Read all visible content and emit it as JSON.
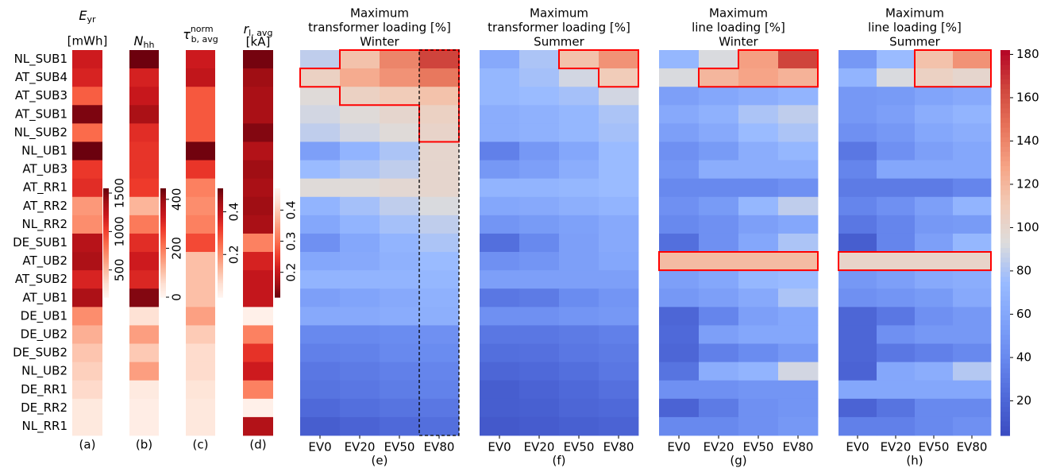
{
  "chart_data": [
    {
      "type": "heatmap",
      "label": "(a)",
      "title": {
        "symbol": "E",
        "sub": "yr",
        "unit": "[mWh]"
      },
      "cmap": "Reds",
      "y_categories": [
        "NL_SUB1",
        "AT_SUB4",
        "AT_SUB3",
        "AT_SUB1",
        "NL_SUB2",
        "NL_UB1",
        "AT_UB3",
        "AT_RR1",
        "AT_RR2",
        "NL_RR2",
        "DE_SUB1",
        "AT_UB2",
        "AT_SUB2",
        "AT_UB1",
        "DE_UB1",
        "DE_UB2",
        "DE_SUB2",
        "NL_UB2",
        "DE_RR1",
        "DE_RR2",
        "NL_RR1"
      ],
      "values": [
        1200,
        1150,
        900,
        1500,
        850,
        1550,
        1050,
        1100,
        650,
        700,
        1300,
        1350,
        1150,
        1350,
        700,
        550,
        450,
        400,
        350,
        250,
        250
      ],
      "clim": [
        146,
        1562
      ],
      "cticks": [
        500,
        1000,
        1500
      ]
    },
    {
      "type": "heatmap",
      "label": "(b)",
      "title": {
        "symbol": "N",
        "sub": "hh"
      },
      "cmap": "Reds",
      "values": [
        440,
        320,
        340,
        380,
        300,
        290,
        290,
        280,
        120,
        200,
        300,
        330,
        310,
        420,
        50,
        150,
        90,
        150,
        30,
        20,
        20
      ],
      "clim": [
        0,
        445
      ],
      "cticks": [
        0,
        200,
        400
      ]
    },
    {
      "type": "heatmap",
      "label": "(c)",
      "title": {
        "symbol": "τ",
        "sup": "norm",
        "sub": "b, avg"
      },
      "cmap": "Reds",
      "values": [
        0.38,
        0.4,
        0.28,
        0.28,
        0.28,
        0.5,
        0.33,
        0.22,
        0.2,
        0.22,
        0.3,
        0.12,
        0.12,
        0.12,
        0.17,
        0.1,
        0.07,
        0.07,
        0.05,
        0.04,
        0.04
      ],
      "clim": [
        0,
        0.51
      ],
      "cticks": [
        0.2,
        0.4
      ]
    },
    {
      "type": "heatmap",
      "label": "(d)",
      "title": {
        "symbol": "r",
        "sub": "l, avg",
        "unit": "[kA]"
      },
      "cmap": "Reds_r",
      "values": [
        0.13,
        0.16,
        0.17,
        0.17,
        0.14,
        0.18,
        0.16,
        0.17,
        0.16,
        0.17,
        0.32,
        0.22,
        0.2,
        0.2,
        0.46,
        0.32,
        0.24,
        0.21,
        0.32,
        0.46,
        0.18
      ],
      "clim": [
        0.12,
        0.47
      ],
      "cticks": [
        0.2,
        0.3,
        0.4
      ]
    },
    {
      "type": "heatmap",
      "label": "(e)",
      "title": [
        "Maximum",
        "transformer loading [%]",
        "Winter"
      ],
      "cmap": "coolwarm",
      "x_categories": [
        "EV0",
        "EV20",
        "EV50",
        "EV80"
      ],
      "values": [
        [
          85,
          115,
          140,
          165
        ],
        [
          105,
          125,
          135,
          145
        ],
        [
          95,
          105,
          110,
          115
        ],
        [
          90,
          95,
          100,
          105
        ],
        [
          85,
          90,
          95,
          102
        ],
        [
          55,
          70,
          80,
          100
        ],
        [
          75,
          80,
          85,
          100
        ],
        [
          95,
          95,
          98,
          100
        ],
        [
          70,
          78,
          85,
          92
        ],
        [
          60,
          70,
          78,
          85
        ],
        [
          45,
          60,
          70,
          80
        ],
        [
          60,
          62,
          68,
          75
        ],
        [
          70,
          70,
          70,
          72
        ],
        [
          55,
          58,
          62,
          68
        ],
        [
          62,
          62,
          64,
          66
        ],
        [
          40,
          40,
          42,
          45
        ],
        [
          35,
          36,
          40,
          42
        ],
        [
          30,
          32,
          35,
          38
        ],
        [
          28,
          30,
          33,
          36
        ],
        [
          22,
          25,
          28,
          30
        ],
        [
          15,
          18,
          22,
          25
        ]
      ]
    },
    {
      "type": "heatmap",
      "label": "(f)",
      "title": [
        "Maximum",
        "transformer loading [%]",
        "Summer"
      ],
      "cmap": "coolwarm",
      "x_categories": [
        "EV0",
        "EV20",
        "EV50",
        "EV80"
      ],
      "values": [
        [
          62,
          80,
          115,
          135
        ],
        [
          72,
          78,
          90,
          110
        ],
        [
          72,
          75,
          78,
          90
        ],
        [
          65,
          68,
          72,
          80
        ],
        [
          65,
          68,
          72,
          78
        ],
        [
          35,
          50,
          60,
          75
        ],
        [
          50,
          55,
          65,
          75
        ],
        [
          70,
          70,
          72,
          75
        ],
        [
          60,
          62,
          66,
          70
        ],
        [
          48,
          52,
          56,
          62
        ],
        [
          25,
          40,
          55,
          62
        ],
        [
          45,
          48,
          55,
          60
        ],
        [
          55,
          55,
          55,
          55
        ],
        [
          30,
          32,
          42,
          48
        ],
        [
          45,
          45,
          48,
          50
        ],
        [
          30,
          30,
          32,
          35
        ],
        [
          25,
          26,
          30,
          32
        ],
        [
          20,
          22,
          25,
          30
        ],
        [
          15,
          18,
          22,
          26
        ],
        [
          15,
          16,
          20,
          22
        ],
        [
          12,
          14,
          16,
          18
        ]
      ]
    },
    {
      "type": "heatmap",
      "label": "(g)",
      "title": [
        "Maximum",
        "line loading [%]",
        "Winter"
      ],
      "cmap": "coolwarm",
      "x_categories": [
        "EV0",
        "EV20",
        "EV50",
        "EV80"
      ],
      "values": [
        [
          72,
          92,
          130,
          165
        ],
        [
          92,
          120,
          128,
          122
        ],
        [
          55,
          60,
          65,
          70
        ],
        [
          62,
          68,
          80,
          85
        ],
        [
          55,
          62,
          75,
          80
        ],
        [
          45,
          52,
          65,
          72
        ],
        [
          48,
          65,
          65,
          65
        ],
        [
          40,
          40,
          40,
          45
        ],
        [
          45,
          52,
          72,
          85
        ],
        [
          40,
          45,
          55,
          60
        ],
        [
          25,
          45,
          60,
          80
        ],
        [
          118,
          118,
          118,
          118
        ],
        [
          55,
          60,
          72,
          75
        ],
        [
          50,
          55,
          62,
          80
        ],
        [
          20,
          38,
          55,
          60
        ],
        [
          22,
          55,
          60,
          60
        ],
        [
          20,
          35,
          42,
          50
        ],
        [
          28,
          65,
          70,
          90
        ],
        [
          45,
          45,
          48,
          48
        ],
        [
          18,
          32,
          45,
          48
        ],
        [
          40,
          40,
          45,
          50
        ]
      ]
    },
    {
      "type": "heatmap",
      "label": "(h)",
      "title": [
        "Maximum",
        "line loading [%]",
        "Summer"
      ],
      "cmap": "coolwarm",
      "x_categories": [
        "EV0",
        "EV20",
        "EV50",
        "EV80"
      ],
      "values": [
        [
          50,
          75,
          115,
          135
        ],
        [
          70,
          92,
          105,
          100
        ],
        [
          50,
          52,
          58,
          62
        ],
        [
          50,
          55,
          65,
          70
        ],
        [
          45,
          50,
          60,
          65
        ],
        [
          30,
          45,
          55,
          60
        ],
        [
          38,
          60,
          60,
          60
        ],
        [
          32,
          32,
          32,
          38
        ],
        [
          38,
          45,
          55,
          70
        ],
        [
          30,
          38,
          50,
          52
        ],
        [
          15,
          38,
          55,
          72
        ],
        [
          102,
          102,
          102,
          102
        ],
        [
          50,
          55,
          62,
          65
        ],
        [
          45,
          48,
          52,
          62
        ],
        [
          20,
          30,
          45,
          50
        ],
        [
          20,
          45,
          50,
          50
        ],
        [
          20,
          30,
          35,
          40
        ],
        [
          18,
          60,
          65,
          82
        ],
        [
          60,
          60,
          60,
          60
        ],
        [
          18,
          28,
          40,
          40
        ],
        [
          35,
          35,
          40,
          45
        ]
      ],
      "clim": [
        4,
        182
      ],
      "cticks": [
        20,
        40,
        60,
        80,
        100,
        120,
        140,
        160,
        180
      ]
    }
  ]
}
